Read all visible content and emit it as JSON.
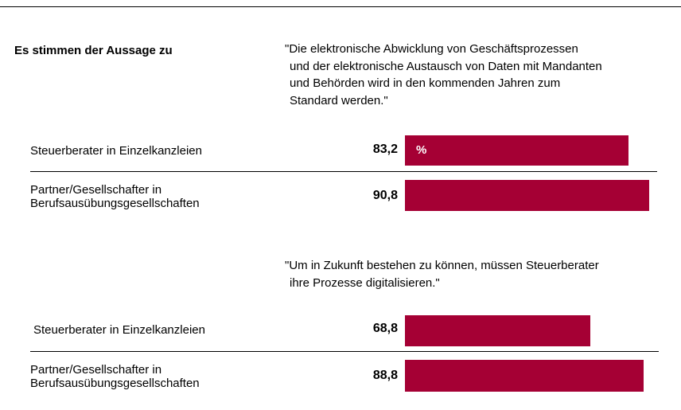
{
  "header": "Es stimmen der Aussage zu",
  "chart_data": [
    {
      "type": "bar",
      "title": [
        "\"Die elektronische Abwicklung von Geschäftsprozessen",
        "und der elektronische Austausch von Daten mit Mandanten",
        "und Behörden wird in den kommenden Jahren zum",
        "Standard werden.\""
      ],
      "categories": [
        "Steuerberater in Einzelkanzleien",
        "Partner/Gesellschafter in Berufsausübungsgesellschaften"
      ],
      "values": [
        83.2,
        90.8
      ],
      "value_labels": [
        "83,2",
        "90,8"
      ],
      "unit_label": "%",
      "color": "#a50034",
      "xlim": [
        0,
        100
      ]
    },
    {
      "type": "bar",
      "title": [
        "\"Um in Zukunft bestehen zu können, müssen Steuerberater",
        "ihre Prozesse digitalisieren.\""
      ],
      "categories": [
        "Steuerberater in Einzelkanzleien",
        "Partner/Gesellschafter in Berufsausübungsgesellschaften"
      ],
      "values": [
        68.8,
        88.8
      ],
      "value_labels": [
        "68,8",
        "88,8"
      ],
      "color": "#a50034",
      "xlim": [
        0,
        100
      ]
    }
  ]
}
